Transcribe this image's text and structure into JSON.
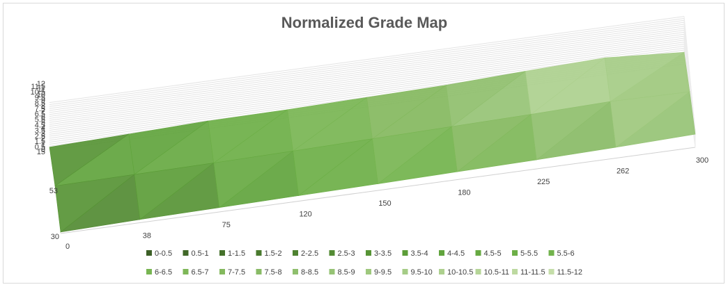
{
  "chart_data": {
    "type": "surface",
    "title": "Normalized Grade Map",
    "x_categories": [
      "0",
      "38",
      "75",
      "120",
      "150",
      "180",
      "225",
      "262",
      "300"
    ],
    "series_depth": [
      "30",
      "53",
      "15"
    ],
    "z_axis_ticks": [
      "0",
      "0.5",
      "1",
      "1.5",
      "2",
      "2.5",
      "3",
      "3.5",
      "4",
      "4.5",
      "5",
      "5.5",
      "6",
      "6.5",
      "7",
      "7.5",
      "8",
      "8.5",
      "9",
      "9.5",
      "10",
      "10.5",
      "11",
      "11.5",
      "12"
    ],
    "zlim": [
      0,
      12
    ],
    "values": [
      [
        1.0,
        2.2,
        3.0,
        3.8,
        4.5,
        5.4,
        6.2,
        7.4,
        9.0
      ],
      [
        4.0,
        4.5,
        5.0,
        5.8,
        6.8,
        7.8,
        8.8,
        10.2,
        9.5
      ],
      [
        2.0,
        3.6,
        5.2,
        5.6,
        6.6,
        7.6,
        9.8,
        11.6,
        8.0
      ]
    ],
    "legend": {
      "position": "bottom",
      "entries": [
        "0-0.5",
        "0.5-1",
        "1-1.5",
        "1.5-2",
        "2-2.5",
        "2.5-3",
        "3-3.5",
        "3.5-4",
        "4-4.5",
        "4.5-5",
        "5-5.5",
        "5.5-6",
        "6-6.5",
        "6.5-7",
        "7-7.5",
        "7.5-8",
        "8-8.5",
        "8.5-9",
        "9-9.5",
        "9.5-10",
        "10-10.5",
        "10.5-11",
        "11-11.5",
        "11.5-12"
      ],
      "colors": [
        "#3c5f26",
        "#416828",
        "#45712b",
        "#4a7a2e",
        "#4e8230",
        "#538b33",
        "#579435",
        "#5c9d38",
        "#61a43d",
        "#67a942",
        "#6daf47",
        "#72b34c",
        "#78b552",
        "#7eb758",
        "#84b95e",
        "#89bb66",
        "#8fbf6d",
        "#96c375",
        "#9ec87d",
        "#a5cc86",
        "#add08e",
        "#b5d597",
        "#bdd9a0",
        "#c5dea9"
      ]
    },
    "grid": true
  }
}
